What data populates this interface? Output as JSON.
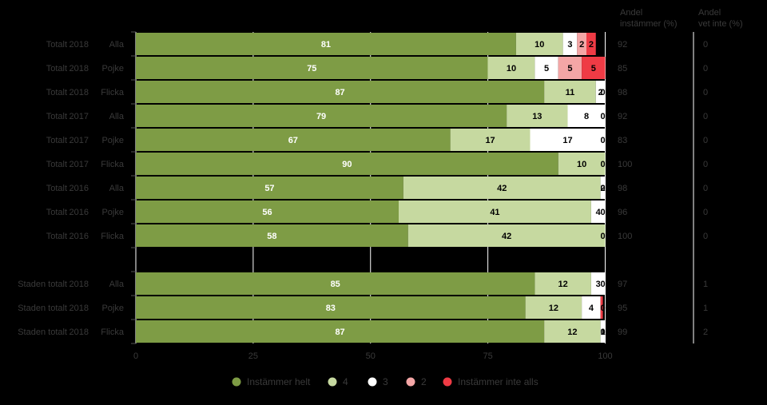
{
  "chart_data": {
    "type": "bar",
    "orientation": "horizontal",
    "stacked": true,
    "xlim": [
      0,
      100
    ],
    "xticks": [
      "0",
      "25",
      "50",
      "75",
      "100"
    ],
    "column_headers": {
      "agree": [
        "Andel",
        "instämmer (%)"
      ],
      "dont_know": [
        "Andel",
        "vet inte (%)"
      ]
    },
    "colors": {
      "Instämmer helt": "#7e9c45",
      "4": "#c6d9a0",
      "3": "#ffffff",
      "2": "#f4a6a6",
      "Instämmer inte alls": "#ef3b45"
    },
    "legend": [
      "Instämmer helt",
      "4",
      "3",
      "2",
      "Instämmer inte alls"
    ],
    "rows": [
      {
        "group": "Totalt",
        "year": "2018",
        "gender": "Alla",
        "values": [
          81,
          10,
          3,
          2,
          2
        ],
        "agree": "92",
        "dont_know": "0"
      },
      {
        "group": "Totalt",
        "year": "2018",
        "gender": "Pojke",
        "values": [
          75,
          10,
          5,
          5,
          5
        ],
        "agree": "85",
        "dont_know": "0"
      },
      {
        "group": "Totalt",
        "year": "2018",
        "gender": "Flicka",
        "values": [
          87,
          11,
          2,
          0,
          0
        ],
        "labels": [
          "87",
          "11",
          "2",
          "0",
          ""
        ],
        "agree": "98",
        "dont_know": "0"
      },
      {
        "group": "Totalt",
        "year": "2017",
        "gender": "Alla",
        "values": [
          79,
          13,
          8,
          0,
          0
        ],
        "labels": [
          "79",
          "13",
          "8",
          "0",
          ""
        ],
        "agree": "92",
        "dont_know": "0"
      },
      {
        "group": "Totalt",
        "year": "2017",
        "gender": "Pojke",
        "values": [
          67,
          17,
          17,
          0,
          0
        ],
        "labels": [
          "67",
          "17",
          "17",
          "0",
          ""
        ],
        "agree": "83",
        "dont_know": "0"
      },
      {
        "group": "Totalt",
        "year": "2017",
        "gender": "Flicka",
        "values": [
          90,
          10,
          0,
          0,
          0
        ],
        "labels": [
          "90",
          "10",
          "0",
          "",
          ""
        ],
        "agree": "100",
        "dont_know": "0"
      },
      {
        "group": "Totalt",
        "year": "2016",
        "gender": "Alla",
        "values": [
          57,
          42,
          2,
          0,
          0
        ],
        "labels": [
          "57",
          "42",
          "2",
          "0",
          ""
        ],
        "agree": "98",
        "dont_know": "0"
      },
      {
        "group": "Totalt",
        "year": "2016",
        "gender": "Pojke",
        "values": [
          56,
          41,
          4,
          0,
          0
        ],
        "labels": [
          "56",
          "41",
          "4",
          "0",
          ""
        ],
        "agree": "96",
        "dont_know": "0"
      },
      {
        "group": "Totalt",
        "year": "2016",
        "gender": "Flicka",
        "values": [
          58,
          42,
          0,
          0,
          0
        ],
        "labels": [
          "58",
          "42",
          "0",
          "",
          ""
        ],
        "agree": "100",
        "dont_know": "0"
      },
      {
        "gap": true
      },
      {
        "group": "Staden totalt",
        "year": "2018",
        "gender": "Alla",
        "values": [
          85,
          12,
          3,
          0,
          0.5
        ],
        "labels": [
          "85",
          "12",
          "3",
          "0",
          ""
        ],
        "agree": "97",
        "dont_know": "1"
      },
      {
        "group": "Staden totalt",
        "year": "2018",
        "gender": "Pojke",
        "values": [
          83,
          12,
          4,
          0,
          0.5
        ],
        "labels": [
          "83",
          "12",
          "4",
          "0",
          ""
        ],
        "agree": "95",
        "dont_know": "1"
      },
      {
        "group": "Staden totalt",
        "year": "2018",
        "gender": "Flicka",
        "values": [
          87,
          12,
          1,
          0,
          0
        ],
        "labels": [
          "87",
          "12",
          "1",
          "0",
          ""
        ],
        "agree": "99",
        "dont_know": "2"
      }
    ]
  }
}
